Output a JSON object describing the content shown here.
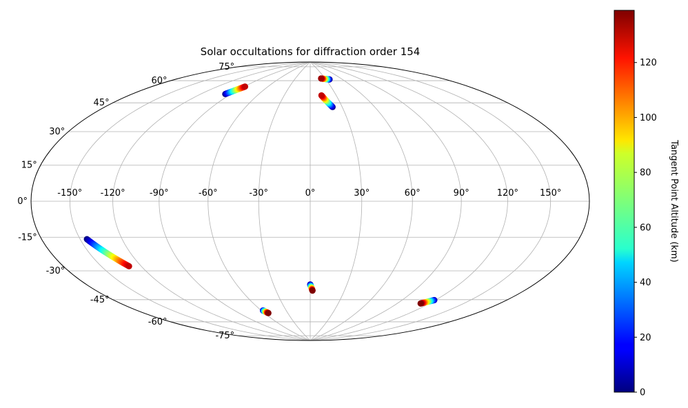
{
  "chart_data": {
    "type": "scatter",
    "projection": "hammer",
    "title": "Solar occultations for diffraction order 154",
    "grid": true,
    "lon_ticks": [
      -150,
      -120,
      -90,
      -60,
      -30,
      0,
      30,
      60,
      90,
      120,
      150
    ],
    "lat_ticks": [
      -75,
      -60,
      -45,
      -30,
      -15,
      0,
      15,
      30,
      45,
      60,
      75
    ],
    "lon_tick_labels": [
      "-150°",
      "-120°",
      "-90°",
      "-60°",
      "-30°",
      "0°",
      "30°",
      "60°",
      "90°",
      "120°",
      "150°"
    ],
    "lat_tick_labels": [
      "-75°",
      "-60°",
      "-45°",
      "-30°",
      "-15°",
      "0°",
      "15°",
      "30°",
      "45°",
      "60°",
      "75°"
    ],
    "colorbar": {
      "label": "Tangent Point Altitude (km)",
      "colormap": "jet",
      "range": [
        0,
        139
      ],
      "ticks": [
        0,
        20,
        40,
        60,
        80,
        100,
        120
      ],
      "tick_labels": [
        "0",
        "20",
        "40",
        "60",
        "80",
        "100",
        "120"
      ]
    },
    "tracks": [
      {
        "lon_start": -145,
        "lat_start": -18,
        "alt_start": 0,
        "lon_end": -129,
        "lat_end": -33,
        "alt_end": 130
      },
      {
        "lon_start": -96,
        "lat_start": 62,
        "alt_start": 0,
        "lon_end": -89,
        "lat_end": 68,
        "alt_end": 130
      },
      {
        "lon_start": 37,
        "lat_start": 76,
        "alt_start": 0,
        "lon_end": 22,
        "lat_end": 77,
        "alt_end": 135
      },
      {
        "lon_start": 21,
        "lat_start": 57,
        "alt_start": 0,
        "lon_end": 13,
        "lat_end": 65,
        "alt_end": 130
      },
      {
        "lon_start": 0,
        "lat_start": -50,
        "alt_start": 0,
        "lon_end": 2,
        "lat_end": -54,
        "alt_end": 139
      },
      {
        "lon_start": -58,
        "lat_start": -66,
        "alt_start": 10,
        "lon_end": -55,
        "lat_end": -68,
        "alt_end": 139
      },
      {
        "lon_start": 119,
        "lat_start": -54,
        "alt_start": 5,
        "lon_end": 112,
        "lat_end": -57,
        "alt_end": 139
      }
    ]
  }
}
